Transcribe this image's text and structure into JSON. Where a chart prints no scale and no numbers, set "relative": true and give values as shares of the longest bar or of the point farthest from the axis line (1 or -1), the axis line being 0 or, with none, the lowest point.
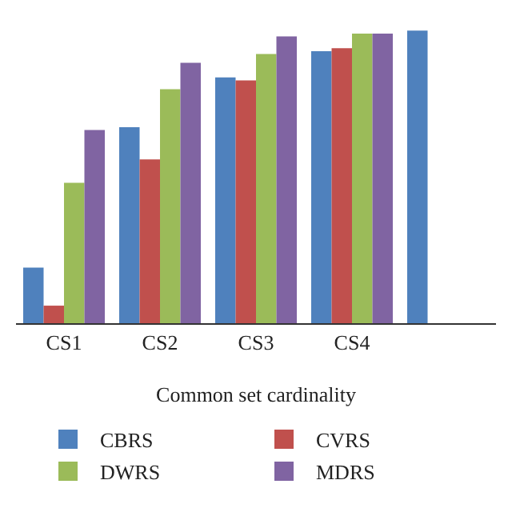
{
  "chart_data": {
    "type": "bar",
    "xlabel": "Common set cardinality",
    "relative": true,
    "legend": "bottom",
    "categories": [
      "CS1",
      "CS2",
      "CS3",
      "CS4",
      null
    ],
    "series": [
      {
        "name": "CBRS",
        "color": "#4f81bd",
        "values": [
          0.19,
          0.67,
          0.84,
          0.93,
          1
        ]
      },
      {
        "name": "CVRS",
        "color": "#c0504d",
        "values": [
          0.06,
          0.56,
          0.83,
          0.94,
          null
        ]
      },
      {
        "name": "DWRS",
        "color": "#9bbb59",
        "values": [
          0.48,
          0.8,
          0.92,
          0.99,
          null
        ]
      },
      {
        "name": "MDRS",
        "color": "#8064a2",
        "values": [
          0.66,
          0.89,
          0.98,
          0.99,
          null
        ]
      }
    ]
  }
}
